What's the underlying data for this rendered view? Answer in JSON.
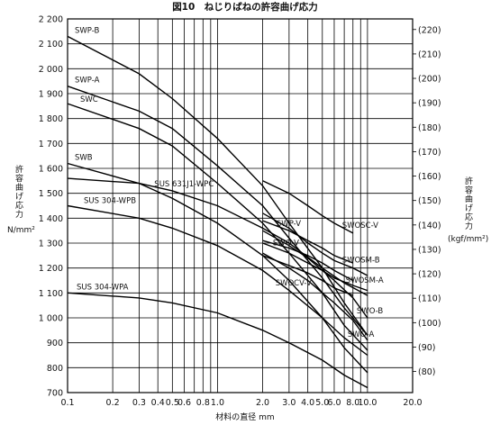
{
  "chart_data": {
    "type": "line",
    "title": "図10　ねじりばねの許容曲げ応力",
    "xlabel": "材料の直径 mm",
    "ylabel_left": "許容曲げ応力",
    "ylabel_left_unit": "N/mm²",
    "ylabel_right": "許容曲げ応力",
    "ylabel_right_unit": "(kgf/mm²)",
    "x_scale": "log",
    "xlim": [
      0.1,
      20.0
    ],
    "ylim": [
      700,
      2200
    ],
    "grid": true,
    "x_ticks": [
      {
        "v": 0.1,
        "t": "0.1"
      },
      {
        "v": 0.2,
        "t": "0.2"
      },
      {
        "v": 0.3,
        "t": "0.3"
      },
      {
        "v": 0.4,
        "t": "0.4"
      },
      {
        "v": 0.5,
        "t": "0.5"
      },
      {
        "v": 0.6,
        "t": "0.6"
      },
      {
        "v": 0.8,
        "t": "0.8"
      },
      {
        "v": 1.0,
        "t": "1.0"
      },
      {
        "v": 2.0,
        "t": "2.0"
      },
      {
        "v": 3.0,
        "t": "3.0"
      },
      {
        "v": 4.0,
        "t": "4.0"
      },
      {
        "v": 5.0,
        "t": "5.0"
      },
      {
        "v": 6.0,
        "t": "6.0"
      },
      {
        "v": 8.0,
        "t": "8.0"
      },
      {
        "v": 10.0,
        "t": "10.0"
      },
      {
        "v": 20.0,
        "t": "20.0"
      }
    ],
    "y_ticks_left": [
      "2 200",
      "2 100",
      "2 000",
      "1 900",
      "1 800",
      "1 700",
      "1 600",
      "1 500",
      "1 400",
      "1 300",
      "1 200",
      "1 100",
      "1 000",
      "900",
      "800",
      "700"
    ],
    "y_ticks_left_values": [
      2200,
      2100,
      2000,
      1900,
      1800,
      1700,
      1600,
      1500,
      1400,
      1300,
      1200,
      1100,
      1000,
      900,
      800,
      700
    ],
    "y_ticks_right": [
      {
        "t": "(220)",
        "kgf": 220
      },
      {
        "t": "(210)",
        "kgf": 210
      },
      {
        "t": "(200)",
        "kgf": 200
      },
      {
        "t": "(190)",
        "kgf": 190
      },
      {
        "t": "(180)",
        "kgf": 180
      },
      {
        "t": "(170)",
        "kgf": 170
      },
      {
        "t": "(160)",
        "kgf": 160
      },
      {
        "t": "(150)",
        "kgf": 150
      },
      {
        "t": "(140)",
        "kgf": 140
      },
      {
        "t": "(130)",
        "kgf": 130
      },
      {
        "t": "(120)",
        "kgf": 120
      },
      {
        "t": "(110)",
        "kgf": 110
      },
      {
        "t": "(100)",
        "kgf": 100
      },
      {
        "t": "(90)",
        "kgf": 90
      },
      {
        "t": "(80)",
        "kgf": 80
      }
    ],
    "series": [
      {
        "name": "SWP-B",
        "x": [
          0.1,
          0.3,
          0.5,
          1.0,
          2.0,
          3.0,
          5.0,
          7.0,
          10.0
        ],
        "y": [
          2130,
          1980,
          1880,
          1720,
          1530,
          1380,
          1200,
          1060,
          930
        ]
      },
      {
        "name": "SWP-A",
        "x": [
          0.1,
          0.3,
          0.5,
          1.0,
          2.0,
          3.0,
          5.0,
          7.0,
          10.0
        ],
        "y": [
          1930,
          1830,
          1760,
          1610,
          1450,
          1320,
          1160,
          1040,
          930
        ]
      },
      {
        "name": "SWC",
        "x": [
          0.1,
          0.3,
          0.5,
          1.0,
          2.0,
          3.0,
          5.0,
          7.0,
          10.0
        ],
        "y": [
          1860,
          1760,
          1690,
          1540,
          1380,
          1260,
          1100,
          970,
          870
        ]
      },
      {
        "name": "SWB",
        "x": [
          0.1,
          0.3,
          0.5,
          1.0,
          2.0,
          3.0,
          5.0,
          7.0,
          10.0
        ],
        "y": [
          1620,
          1540,
          1480,
          1380,
          1250,
          1150,
          1000,
          880,
          780
        ]
      },
      {
        "name": "SUS 631J1-WPC",
        "x": [
          0.1,
          0.3,
          0.5,
          1.0,
          2.0,
          3.0,
          5.0,
          7.0,
          10.0
        ],
        "y": [
          1560,
          1540,
          1510,
          1450,
          1360,
          1300,
          1200,
          1140,
          1090
        ]
      },
      {
        "name": "SUS 304-WPB",
        "x": [
          0.1,
          0.3,
          0.5,
          1.0,
          2.0,
          3.0,
          5.0,
          7.0,
          10.0
        ],
        "y": [
          1450,
          1400,
          1360,
          1290,
          1190,
          1110,
          1000,
          920,
          850
        ]
      },
      {
        "name": "SUS 304-WPA",
        "x": [
          0.1,
          0.3,
          0.5,
          1.0,
          2.0,
          3.0,
          5.0,
          7.0,
          10.0
        ],
        "y": [
          1100,
          1080,
          1060,
          1020,
          950,
          900,
          830,
          770,
          720
        ]
      },
      {
        "name": "SWP-V",
        "x": [
          2.0,
          3.0,
          4.0,
          5.0,
          6.0,
          8.0
        ],
        "y": [
          1390,
          1350,
          1310,
          1280,
          1250,
          1220
        ]
      },
      {
        "name": "SWOSC-V",
        "x": [
          2.0,
          3.0,
          4.0,
          5.0,
          6.0,
          8.0
        ],
        "y": [
          1550,
          1500,
          1450,
          1410,
          1380,
          1340
        ]
      },
      {
        "name": "SWO-V",
        "x": [
          2.0,
          3.0,
          4.0,
          5.0,
          6.0,
          8.0
        ],
        "y": [
          1310,
          1280,
          1250,
          1220,
          1190,
          1150
        ]
      },
      {
        "name": "SWOCV-V",
        "x": [
          2.0,
          3.0,
          4.0,
          5.0,
          6.0,
          8.0
        ],
        "y": [
          1250,
          1210,
          1180,
          1150,
          1120,
          1090
        ]
      },
      {
        "name": "SWOSM-B",
        "x": [
          2.0,
          3.0,
          4.0,
          5.0,
          6.0,
          8.0,
          10.0
        ],
        "y": [
          1420,
          1360,
          1300,
          1260,
          1230,
          1200,
          1170
        ]
      },
      {
        "name": "SWOSM-A",
        "x": [
          2.0,
          3.0,
          4.0,
          5.0,
          6.0,
          8.0,
          10.0
        ],
        "y": [
          1300,
          1260,
          1220,
          1190,
          1160,
          1130,
          1110
        ]
      },
      {
        "name": "SWO-B",
        "x": [
          2.0,
          3.0,
          4.0,
          5.0,
          6.0,
          8.0,
          10.0
        ],
        "y": [
          1350,
          1290,
          1240,
          1190,
          1150,
          1080,
          1000
        ]
      },
      {
        "name": "SWO-A",
        "x": [
          2.0,
          3.0,
          4.0,
          5.0,
          6.0,
          8.0,
          10.0
        ],
        "y": [
          1260,
          1200,
          1150,
          1100,
          1060,
          990,
          910
        ]
      }
    ]
  }
}
